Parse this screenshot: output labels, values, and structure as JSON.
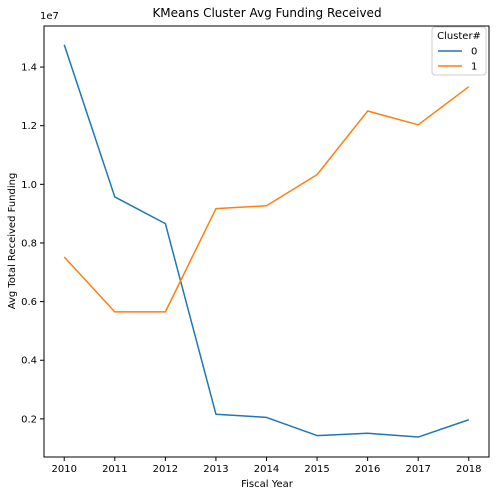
{
  "chart_data": {
    "type": "line",
    "title": "KMeans Cluster Avg Funding Received",
    "xlabel": "Fiscal Year",
    "ylabel": "Avg Total Received Funding",
    "y_scale_label": "1e7",
    "x": [
      2010,
      2011,
      2012,
      2013,
      2014,
      2015,
      2016,
      2017,
      2018
    ],
    "x_tick_labels": [
      "2010",
      "2011",
      "2012",
      "2013",
      "2014",
      "2015",
      "2016",
      "2017",
      "2018"
    ],
    "y_ticks": [
      0.2,
      0.4,
      0.6,
      0.8,
      1.0,
      1.2,
      1.4
    ],
    "y_tick_labels": [
      "0.2",
      "0.4",
      "0.6",
      "0.8",
      "1.0",
      "1.2",
      "1.4"
    ],
    "xlim": [
      2009.6,
      2018.4
    ],
    "ylim": [
      0.07,
      1.54
    ],
    "legend": {
      "title": "Cluster#",
      "placement": "top-right"
    },
    "grid": false,
    "series": [
      {
        "name": "0",
        "color": "#1f77b4",
        "values": [
          1.476,
          0.957,
          0.866,
          0.216,
          0.205,
          0.143,
          0.151,
          0.138,
          0.197
        ]
      },
      {
        "name": "1",
        "color": "#ff7f0e",
        "values": [
          0.752,
          0.565,
          0.565,
          0.917,
          0.927,
          1.033,
          1.25,
          1.203,
          1.333
        ]
      }
    ]
  }
}
